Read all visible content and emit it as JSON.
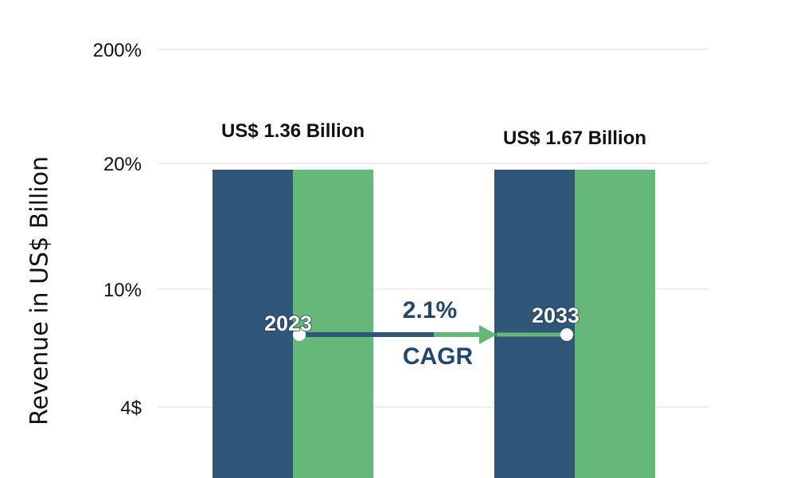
{
  "chart_data": {
    "type": "bar",
    "title": "",
    "xlabel": "",
    "ylabel": "Revenue in US$ Billion",
    "y_ticks": [
      "200%",
      "20%",
      "10%",
      "4$"
    ],
    "categories": [
      "2023",
      "2033"
    ],
    "values": [
      1.36,
      1.67
    ],
    "value_labels": [
      "US$ 1.36 Billion",
      "US$ 1.67 Billion"
    ],
    "bar_colors": [
      "#2f5579",
      "#65b77a"
    ],
    "grid": true,
    "legend": "none",
    "annotation": {
      "value": "2.1%",
      "label": "CAGR"
    }
  }
}
